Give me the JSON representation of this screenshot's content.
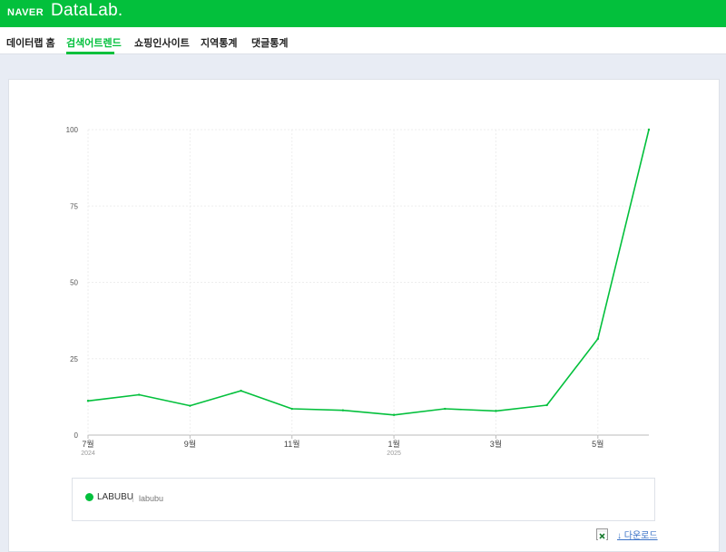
{
  "brand": {
    "naver": "NAVER",
    "datalab": "DataLab."
  },
  "tabs": [
    {
      "label": "데이터랩 홈"
    },
    {
      "label": "검색어트렌드",
      "active": true
    },
    {
      "label": "쇼핑인사이트"
    },
    {
      "label": "지역통계"
    },
    {
      "label": "댓글통계"
    }
  ],
  "legend": {
    "name": "LABUBU",
    "keyword": "labubu",
    "color": "#03c03c"
  },
  "actions": {
    "download": "↓ 다운로드"
  },
  "colors": {
    "brand": "#03c03c",
    "page_bg": "#e8ecf4",
    "link": "#3b73c7"
  },
  "icons": {
    "excel": "excel-icon"
  },
  "chart_data": {
    "type": "line",
    "x": [
      "2024-07",
      "2024-08",
      "2024-09",
      "2024-10",
      "2024-11",
      "2024-12",
      "2025-01",
      "2025-02",
      "2025-03",
      "2025-04",
      "2025-05",
      "2025-06"
    ],
    "x_tick_labels": [
      {
        "x": "2024-07",
        "label": "7월",
        "sub": "2024"
      },
      {
        "x": "2024-09",
        "label": "9월"
      },
      {
        "x": "2024-11",
        "label": "11월"
      },
      {
        "x": "2025-01",
        "label": "1월",
        "sub": "2025"
      },
      {
        "x": "2025-03",
        "label": "3월"
      },
      {
        "x": "2025-05",
        "label": "5월"
      }
    ],
    "y_ticks": [
      "0",
      "25",
      "50",
      "75",
      "100"
    ],
    "ylim": [
      0,
      100
    ],
    "grid": true,
    "series": [
      {
        "name": "LABUBU",
        "color": "#03c03c",
        "values": [
          11.2,
          13.2,
          9.6,
          14.5,
          8.6,
          8.1,
          6.6,
          8.6,
          7.9,
          9.8,
          31.5,
          100
        ]
      }
    ]
  }
}
